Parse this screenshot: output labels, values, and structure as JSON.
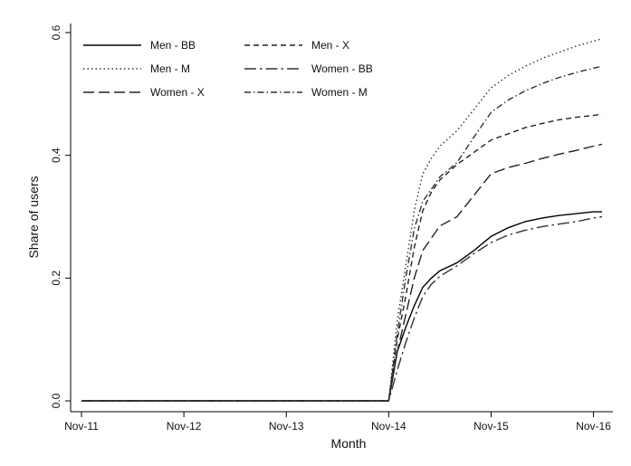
{
  "chart_data": {
    "type": "line",
    "title": "",
    "xlabel": "Month",
    "ylabel": "Share of users",
    "x_ticks": [
      "Nov-11",
      "Nov-12",
      "Nov-13",
      "Nov-14",
      "Nov-15",
      "Nov-16"
    ],
    "y_ticks": [
      "0.0",
      "0.2",
      "0.4",
      "0.6"
    ],
    "xlim": [
      0,
      61
    ],
    "ylim": [
      0,
      0.6
    ],
    "grid": false,
    "legend_position": "top-left",
    "x": [
      0,
      36,
      37,
      38,
      39,
      40,
      41,
      42,
      44,
      46,
      48,
      50,
      52,
      54,
      56,
      58,
      60,
      61
    ],
    "series": [
      {
        "name": "Men - BB",
        "style": "solid",
        "color": "#000000",
        "values": [
          0,
          0,
          0.08,
          0.12,
          0.155,
          0.185,
          0.2,
          0.212,
          0.225,
          0.245,
          0.268,
          0.282,
          0.292,
          0.298,
          0.302,
          0.305,
          0.308,
          0.308
        ]
      },
      {
        "name": "Men - X",
        "style": "dash",
        "color": "#222222",
        "values": [
          0,
          0,
          0.1,
          0.17,
          0.25,
          0.31,
          0.34,
          0.36,
          0.385,
          0.405,
          0.425,
          0.435,
          0.445,
          0.452,
          0.458,
          0.462,
          0.465,
          0.467
        ]
      },
      {
        "name": "Men - M",
        "style": "dot",
        "color": "#333333",
        "values": [
          0,
          0,
          0.13,
          0.22,
          0.31,
          0.37,
          0.395,
          0.415,
          0.44,
          0.475,
          0.51,
          0.53,
          0.545,
          0.558,
          0.568,
          0.578,
          0.586,
          0.59
        ]
      },
      {
        "name": "Women - BB",
        "style": "longdash-dot",
        "color": "#333333",
        "values": [
          0,
          0,
          0.05,
          0.095,
          0.135,
          0.17,
          0.19,
          0.203,
          0.22,
          0.24,
          0.258,
          0.27,
          0.278,
          0.284,
          0.288,
          0.292,
          0.298,
          0.3
        ]
      },
      {
        "name": "Women - X",
        "style": "longdash",
        "color": "#222222",
        "values": [
          0,
          0,
          0.08,
          0.14,
          0.2,
          0.245,
          0.265,
          0.285,
          0.3,
          0.335,
          0.37,
          0.38,
          0.387,
          0.395,
          0.402,
          0.408,
          0.415,
          0.418
        ]
      },
      {
        "name": "Women - M",
        "style": "dashdot",
        "color": "#333333",
        "values": [
          0,
          0,
          0.11,
          0.2,
          0.28,
          0.325,
          0.345,
          0.365,
          0.388,
          0.43,
          0.47,
          0.49,
          0.505,
          0.517,
          0.527,
          0.535,
          0.542,
          0.545
        ]
      }
    ]
  }
}
